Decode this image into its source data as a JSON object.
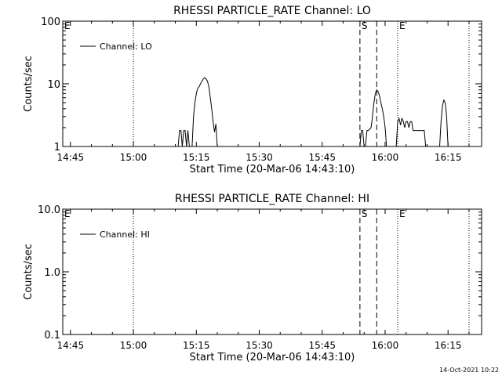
{
  "chart_data": [
    {
      "type": "line",
      "title": "RHESSI PARTICLE_RATE Channel: LO",
      "xlabel": "Start Time (20-Mar-06 14:43:10)",
      "ylabel": "Counts/sec",
      "y_scale": "log",
      "ylim": [
        1,
        100
      ],
      "xlim": [
        "14:43:10",
        "16:23:00"
      ],
      "x_ticks": [
        "14:45",
        "15:00",
        "15:15",
        "15:30",
        "15:45",
        "16:00",
        "16:15"
      ],
      "y_ticks": [
        "1",
        "10",
        "100"
      ],
      "legend": {
        "position": "top-left",
        "entries": [
          "Channel: LO"
        ]
      },
      "grid": false,
      "markers": [
        {
          "time": "14:43:10",
          "label": "E",
          "style": "dotted"
        },
        {
          "time": "15:00",
          "label": "",
          "style": "dotted"
        },
        {
          "time": "15:54",
          "label": "S",
          "style": "dashed"
        },
        {
          "time": "15:58",
          "label": "",
          "style": "dashed"
        },
        {
          "time": "16:03",
          "label": "E",
          "style": "dotted"
        },
        {
          "time": "16:20",
          "label": "",
          "style": "dotted"
        }
      ],
      "series": [
        {
          "name": "Channel: LO",
          "segments": [
            [
              [
                "15:10:40",
                1
              ],
              [
                "15:11:00",
                1.8
              ],
              [
                "15:11:20",
                1.8
              ],
              [
                "15:11:40",
                1
              ],
              [
                "15:12:00",
                1.8
              ],
              [
                "15:12:20",
                1.8
              ],
              [
                "15:12:40",
                1
              ],
              [
                "15:13:00",
                1.8
              ],
              [
                "15:13:20",
                1
              ],
              [
                "15:14:00",
                1
              ],
              [
                "15:14:20",
                3
              ],
              [
                "15:14:40",
                5
              ],
              [
                "15:15:00",
                7
              ],
              [
                "15:15:20",
                8.5
              ],
              [
                "15:15:40",
                9
              ],
              [
                "15:16:00",
                10
              ],
              [
                "15:16:20",
                11
              ],
              [
                "15:16:40",
                12
              ],
              [
                "15:17:00",
                12.5
              ],
              [
                "15:17:20",
                12
              ],
              [
                "15:17:40",
                11
              ],
              [
                "15:18:00",
                9
              ],
              [
                "15:18:20",
                6
              ],
              [
                "15:18:40",
                4
              ],
              [
                "15:19:00",
                2.5
              ],
              [
                "15:19:20",
                1.7
              ],
              [
                "15:19:40",
                2.3
              ],
              [
                "15:20:00",
                1
              ]
            ],
            [
              [
                "15:54:00",
                1
              ],
              [
                "15:54:20",
                1.8
              ],
              [
                "15:54:40",
                1.8
              ],
              [
                "15:55:00",
                1
              ],
              [
                "15:55:20",
                1
              ],
              [
                "15:55:40",
                1.8
              ],
              [
                "15:56:00",
                1.8
              ],
              [
                "15:56:40",
                2
              ],
              [
                "15:57:00",
                3
              ],
              [
                "15:57:20",
                5
              ],
              [
                "15:57:40",
                7
              ],
              [
                "15:58:00",
                8
              ],
              [
                "15:58:20",
                7.5
              ],
              [
                "15:58:40",
                6.5
              ],
              [
                "15:59:00",
                5
              ],
              [
                "15:59:20",
                4
              ],
              [
                "15:59:40",
                3
              ],
              [
                "16:00:00",
                2
              ],
              [
                "16:00:20",
                1
              ]
            ],
            [
              [
                "16:02:40",
                1
              ],
              [
                "16:03:00",
                2.5
              ],
              [
                "16:03:20",
                2.8
              ],
              [
                "16:03:40",
                2.2
              ],
              [
                "16:04:00",
                2.8
              ],
              [
                "16:04:20",
                2.5
              ],
              [
                "16:04:40",
                2
              ],
              [
                "16:05:00",
                2.5
              ],
              [
                "16:05:20",
                2.5
              ],
              [
                "16:05:40",
                2
              ],
              [
                "16:06:00",
                2.5
              ],
              [
                "16:06:20",
                2.5
              ],
              [
                "16:06:40",
                1.8
              ],
              [
                "16:07:00",
                1.8
              ],
              [
                "16:07:20",
                1.8
              ],
              [
                "16:07:40",
                1.8
              ],
              [
                "16:08:00",
                1.8
              ],
              [
                "16:08:20",
                1.8
              ],
              [
                "16:08:40",
                1.8
              ],
              [
                "16:09:00",
                1.8
              ],
              [
                "16:09:20",
                1.8
              ],
              [
                "16:09:40",
                1
              ],
              [
                "16:10:00",
                1
              ]
            ],
            [
              [
                "16:13:00",
                1
              ],
              [
                "16:13:20",
                2.5
              ],
              [
                "16:13:40",
                4.5
              ],
              [
                "16:14:00",
                5.5
              ],
              [
                "16:14:20",
                5
              ],
              [
                "16:14:40",
                3
              ],
              [
                "16:15:00",
                1
              ]
            ]
          ]
        }
      ]
    },
    {
      "type": "line",
      "title": "RHESSI PARTICLE_RATE Channel: HI",
      "xlabel": "Start Time (20-Mar-06 14:43:10)",
      "ylabel": "Counts/sec",
      "y_scale": "log",
      "ylim": [
        0.1,
        10
      ],
      "xlim": [
        "14:43:10",
        "16:23:00"
      ],
      "x_ticks": [
        "14:45",
        "15:00",
        "15:15",
        "15:30",
        "15:45",
        "16:00",
        "16:15"
      ],
      "y_ticks": [
        "0.1",
        "1.0",
        "10.0"
      ],
      "legend": {
        "position": "top-left",
        "entries": [
          "Channel: HI"
        ]
      },
      "grid": false,
      "markers": [
        {
          "time": "14:43:10",
          "label": "E",
          "style": "dotted"
        },
        {
          "time": "15:00",
          "label": "",
          "style": "dotted"
        },
        {
          "time": "15:54",
          "label": "S",
          "style": "dashed"
        },
        {
          "time": "15:58",
          "label": "",
          "style": "dashed"
        },
        {
          "time": "16:03",
          "label": "E",
          "style": "dotted"
        },
        {
          "time": "16:20",
          "label": "",
          "style": "dotted"
        }
      ],
      "series": [
        {
          "name": "Channel: HI",
          "segments": []
        }
      ]
    }
  ],
  "footer": {
    "timestamp": "14-Oct-2021 10:22"
  }
}
